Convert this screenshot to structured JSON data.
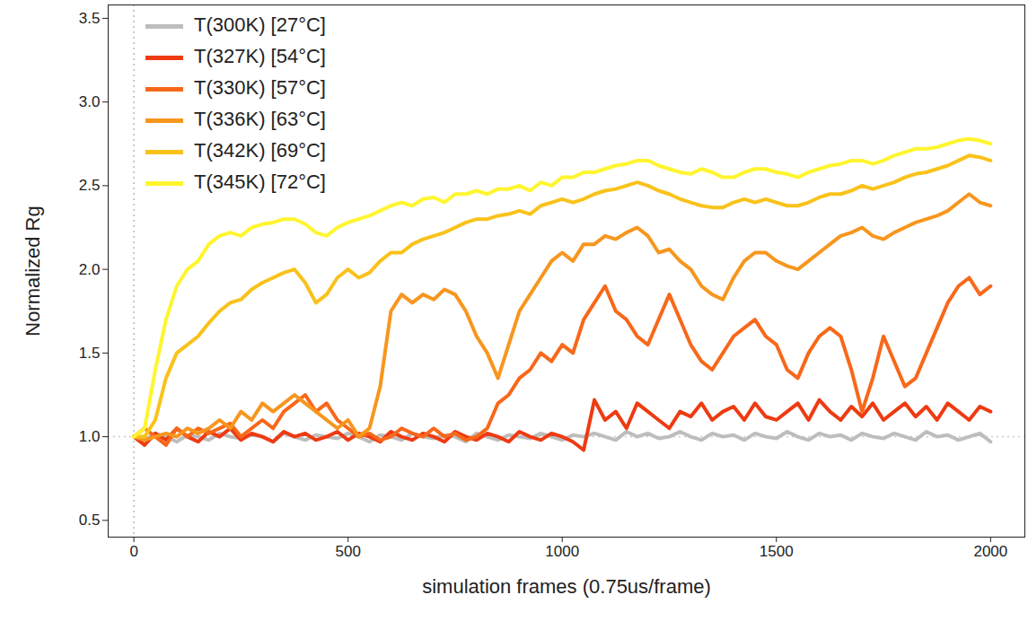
{
  "chart_data": {
    "type": "line",
    "x_label": "simulation frames (0.75us/frame)",
    "y_label": "Normalized Rg",
    "xlim": [
      -60,
      2080
    ],
    "ylim": [
      0.4,
      3.58
    ],
    "xticks": [
      0,
      500,
      1000,
      1500,
      2000
    ],
    "yticks": [
      0.5,
      {
        "value": 1,
        "label": "1.0"
      },
      1.5,
      {
        "value": 2,
        "label": "2.0"
      },
      2.5,
      {
        "value": 3,
        "label": "3.0"
      },
      3.5
    ],
    "grid": false,
    "legend": "top-left",
    "reference_x": 0,
    "reference_y": 1,
    "x": [
      0,
      25,
      50,
      75,
      100,
      125,
      150,
      175,
      200,
      225,
      250,
      275,
      300,
      325,
      350,
      375,
      400,
      425,
      450,
      475,
      500,
      525,
      550,
      575,
      600,
      625,
      650,
      675,
      700,
      725,
      750,
      775,
      800,
      825,
      850,
      875,
      900,
      925,
      950,
      975,
      1000,
      1025,
      1050,
      1075,
      1100,
      1125,
      1150,
      1175,
      1200,
      1225,
      1250,
      1275,
      1300,
      1325,
      1350,
      1375,
      1400,
      1425,
      1450,
      1475,
      1500,
      1525,
      1550,
      1575,
      1600,
      1625,
      1650,
      1675,
      1700,
      1725,
      1750,
      1775,
      1800,
      1825,
      1850,
      1875,
      1900,
      1925,
      1950,
      1975,
      2000
    ],
    "series": [
      {
        "name": "T(300K) [27°C]",
        "color": "#bdbdbd",
        "values": [
          1.0,
          0.98,
          1.02,
          1.0,
          0.97,
          1.01,
          1.0,
          0.98,
          1.02,
          1.0,
          0.99,
          1.01,
          1.0,
          0.97,
          1.02,
          1.0,
          0.98,
          1.01,
          1.0,
          0.99,
          1.02,
          1.0,
          0.97,
          1.01,
          1.0,
          0.98,
          1.02,
          1.0,
          0.99,
          1.01,
          1.0,
          0.97,
          1.02,
          1.0,
          0.98,
          1.01,
          1.0,
          0.99,
          1.02,
          1.0,
          0.98,
          1.01,
          1.0,
          1.02,
          1.0,
          0.98,
          1.03,
          1.0,
          1.02,
          0.99,
          1.0,
          1.03,
          1.0,
          0.98,
          1.02,
          1.0,
          1.01,
          0.98,
          1.02,
          1.0,
          0.99,
          1.03,
          1.0,
          0.98,
          1.02,
          1.0,
          1.01,
          0.98,
          1.02,
          1.0,
          0.99,
          1.02,
          1.0,
          0.98,
          1.03,
          1.0,
          1.01,
          0.98,
          1.0,
          1.02,
          0.97
        ]
      },
      {
        "name": "T(327K) [54°C]",
        "color": "#ee3b12",
        "values": [
          1.0,
          0.95,
          1.02,
          0.98,
          1.05,
          1.0,
          0.97,
          1.03,
          1.0,
          1.05,
          0.98,
          1.02,
          1.0,
          0.97,
          1.03,
          1.0,
          1.02,
          0.98,
          1.0,
          1.03,
          0.98,
          1.02,
          1.0,
          0.97,
          1.03,
          1.0,
          0.98,
          1.02,
          1.0,
          0.97,
          1.03,
          1.0,
          0.98,
          1.02,
          1.0,
          0.97,
          1.03,
          1.0,
          0.98,
          1.02,
          1.0,
          0.97,
          0.92,
          1.22,
          1.1,
          1.15,
          1.05,
          1.2,
          1.15,
          1.1,
          1.05,
          1.15,
          1.12,
          1.2,
          1.1,
          1.15,
          1.18,
          1.1,
          1.2,
          1.12,
          1.1,
          1.15,
          1.2,
          1.1,
          1.22,
          1.15,
          1.1,
          1.18,
          1.12,
          1.2,
          1.1,
          1.15,
          1.2,
          1.12,
          1.18,
          1.1,
          1.2,
          1.15,
          1.1,
          1.18,
          1.15
        ]
      },
      {
        "name": "T(330K) [57°C]",
        "color": "#f8681a",
        "values": [
          1.0,
          1.05,
          1.0,
          0.95,
          1.05,
          1.0,
          1.05,
          1.02,
          1.05,
          1.08,
          1.0,
          1.05,
          1.1,
          1.05,
          1.15,
          1.2,
          1.25,
          1.15,
          1.2,
          1.1,
          1.05,
          1.0,
          1.02,
          0.98,
          1.0,
          1.05,
          1.02,
          1.0,
          1.05,
          1.0,
          1.02,
          0.98,
          1.0,
          1.05,
          1.2,
          1.25,
          1.35,
          1.4,
          1.5,
          1.45,
          1.55,
          1.5,
          1.7,
          1.8,
          1.9,
          1.75,
          1.7,
          1.6,
          1.55,
          1.7,
          1.85,
          1.7,
          1.55,
          1.45,
          1.4,
          1.5,
          1.6,
          1.65,
          1.7,
          1.6,
          1.55,
          1.4,
          1.35,
          1.5,
          1.6,
          1.65,
          1.6,
          1.4,
          1.15,
          1.35,
          1.6,
          1.45,
          1.3,
          1.35,
          1.5,
          1.65,
          1.8,
          1.9,
          1.95,
          1.85,
          1.9
        ]
      },
      {
        "name": "T(336K) [63°C]",
        "color": "#f7961e",
        "values": [
          1.0,
          0.98,
          1.0,
          1.02,
          1.0,
          1.05,
          1.02,
          1.05,
          1.1,
          1.05,
          1.15,
          1.1,
          1.2,
          1.15,
          1.2,
          1.25,
          1.2,
          1.15,
          1.1,
          1.05,
          1.1,
          1.0,
          1.05,
          1.3,
          1.75,
          1.85,
          1.8,
          1.85,
          1.82,
          1.88,
          1.85,
          1.75,
          1.6,
          1.5,
          1.35,
          1.55,
          1.75,
          1.85,
          1.95,
          2.05,
          2.1,
          2.05,
          2.15,
          2.15,
          2.2,
          2.18,
          2.22,
          2.25,
          2.2,
          2.1,
          2.12,
          2.05,
          2.0,
          1.9,
          1.85,
          1.82,
          1.95,
          2.05,
          2.1,
          2.1,
          2.05,
          2.02,
          2.0,
          2.05,
          2.1,
          2.15,
          2.2,
          2.22,
          2.25,
          2.2,
          2.18,
          2.22,
          2.25,
          2.28,
          2.3,
          2.32,
          2.35,
          2.4,
          2.45,
          2.4,
          2.38
        ]
      },
      {
        "name": "T(342K) [69°C]",
        "color": "#f9c21a",
        "values": [
          1.0,
          1.0,
          1.1,
          1.35,
          1.5,
          1.55,
          1.6,
          1.68,
          1.75,
          1.8,
          1.82,
          1.88,
          1.92,
          1.95,
          1.98,
          2.0,
          1.92,
          1.8,
          1.85,
          1.95,
          2.0,
          1.95,
          1.98,
          2.05,
          2.1,
          2.1,
          2.15,
          2.18,
          2.2,
          2.22,
          2.25,
          2.28,
          2.3,
          2.3,
          2.32,
          2.33,
          2.35,
          2.33,
          2.38,
          2.4,
          2.42,
          2.4,
          2.42,
          2.45,
          2.47,
          2.48,
          2.5,
          2.52,
          2.5,
          2.47,
          2.45,
          2.42,
          2.4,
          2.38,
          2.37,
          2.37,
          2.4,
          2.42,
          2.4,
          2.42,
          2.4,
          2.38,
          2.38,
          2.4,
          2.43,
          2.45,
          2.45,
          2.47,
          2.5,
          2.48,
          2.5,
          2.52,
          2.55,
          2.57,
          2.58,
          2.6,
          2.62,
          2.65,
          2.68,
          2.67,
          2.65
        ]
      },
      {
        "name": "T(345K) [72°C]",
        "color": "#fff52e",
        "values": [
          1.0,
          1.05,
          1.4,
          1.7,
          1.9,
          2.0,
          2.05,
          2.15,
          2.2,
          2.22,
          2.2,
          2.25,
          2.27,
          2.28,
          2.3,
          2.3,
          2.27,
          2.22,
          2.2,
          2.25,
          2.28,
          2.3,
          2.32,
          2.35,
          2.38,
          2.4,
          2.38,
          2.42,
          2.43,
          2.4,
          2.45,
          2.45,
          2.47,
          2.45,
          2.48,
          2.48,
          2.5,
          2.47,
          2.52,
          2.5,
          2.55,
          2.55,
          2.58,
          2.58,
          2.6,
          2.62,
          2.63,
          2.65,
          2.65,
          2.62,
          2.6,
          2.58,
          2.57,
          2.6,
          2.58,
          2.55,
          2.55,
          2.58,
          2.6,
          2.6,
          2.58,
          2.57,
          2.55,
          2.58,
          2.6,
          2.62,
          2.63,
          2.65,
          2.65,
          2.63,
          2.65,
          2.68,
          2.7,
          2.72,
          2.72,
          2.73,
          2.75,
          2.77,
          2.78,
          2.77,
          2.75
        ]
      }
    ]
  }
}
